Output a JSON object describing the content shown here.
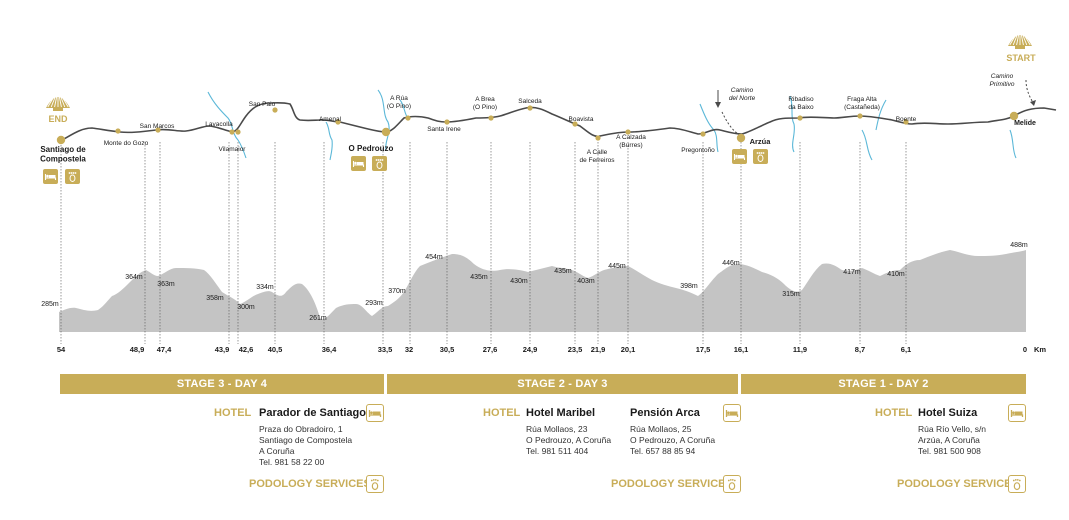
{
  "markers": {
    "end": "END",
    "start": "START"
  },
  "towns": [
    {
      "name": "Santiago de Compostela",
      "lines": [
        "Santiago de",
        "Compostela"
      ],
      "km": 54
    },
    {
      "name": "Monte do Gozo",
      "lines": [
        "Monte do Gozo"
      ]
    },
    {
      "name": "San Marcos",
      "lines": [
        "San Marcos"
      ]
    },
    {
      "name": "Lavacolla",
      "lines": [
        "Lavacolla"
      ]
    },
    {
      "name": "Vilamaior",
      "lines": [
        "Vilamaior"
      ]
    },
    {
      "name": "San Paio",
      "lines": [
        "San Paio"
      ]
    },
    {
      "name": "Amenal",
      "lines": [
        "Amenal"
      ]
    },
    {
      "name": "O Pedrouzo",
      "lines": [
        "O Pedrouzo"
      ]
    },
    {
      "name": "A Rúa (O Pino)",
      "lines": [
        "A Rúa",
        "(O Pino)"
      ]
    },
    {
      "name": "Santa Irene",
      "lines": [
        "Santa Irene"
      ]
    },
    {
      "name": "A Brea (O Pino)",
      "lines": [
        "A Brea",
        "(O Pino)"
      ]
    },
    {
      "name": "Salceda",
      "lines": [
        "Salceda"
      ]
    },
    {
      "name": "Boavista",
      "lines": [
        "Boavista"
      ]
    },
    {
      "name": "A Calle de Ferreiros",
      "lines": [
        "A Calle",
        "de Ferreiros"
      ]
    },
    {
      "name": "A Calzada (Burres)",
      "lines": [
        "A Calzada",
        "(Burres)"
      ]
    },
    {
      "name": "Pregontoño",
      "lines": [
        "Pregontoño"
      ]
    },
    {
      "name": "Arzúa",
      "lines": [
        "Arzúa"
      ]
    },
    {
      "name": "Ribadiso da Baixo",
      "lines": [
        "Ribadiso",
        "da Baixo"
      ]
    },
    {
      "name": "Fraga Alta (Castañeda)",
      "lines": [
        "Fraga Alta",
        "(Castañeda)"
      ]
    },
    {
      "name": "Boente",
      "lines": [
        "Boente"
      ]
    },
    {
      "name": "Melide",
      "lines": [
        "Melide"
      ]
    }
  ],
  "routes": [
    {
      "lines": [
        "Camino",
        "del Norte"
      ]
    },
    {
      "lines": [
        "Camino",
        "Primitivo"
      ]
    }
  ],
  "distances": [
    "54",
    "48,9",
    "47,4",
    "43,9",
    "42,6",
    "40,5",
    "36,4",
    "33,5",
    "32",
    "30,5",
    "27,6",
    "24,9",
    "23,5",
    "21,9",
    "20,1",
    "17,5",
    "16,1",
    "11,9",
    "8,7",
    "6,1",
    "0"
  ],
  "distance_unit": "Km",
  "elevations": [
    "285m",
    "364m",
    "363m",
    "358m",
    "300m",
    "334m",
    "261m",
    "293m",
    "370m",
    "454m",
    "435m",
    "430m",
    "435m",
    "403m",
    "445m",
    "398m",
    "446m",
    "315m",
    "417m",
    "410m",
    "488m"
  ],
  "stages": [
    "STAGE 3 - DAY 4",
    "STAGE 2 - DAY 3",
    "STAGE 1 - DAY 2"
  ],
  "services": {
    "hotel_label": "HOTEL",
    "podology_label": "PODOLOGY SERVICES",
    "hotels": [
      {
        "name": "Parador de Santiago",
        "address": [
          "Praza do Obradoiro, 1",
          "Santiago de Compostela",
          "A Coruña",
          "Tel. 981 58 22 00"
        ]
      },
      {
        "name": "Hotel Maribel",
        "address": [
          "Rúa Mollaos, 23",
          "O Pedrouzo, A Coruña",
          "Tel. 981 511 404"
        ]
      },
      {
        "name": "Pensión Arca",
        "address": [
          "Rúa Mollaos, 25",
          "O Pedrouzo, A Coruña",
          "Tel. 657 88 85 94"
        ]
      },
      {
        "name": "Hotel Suiza",
        "address": [
          "Rúa Río Vello, s/n",
          "Arzúa, A Coruña",
          "Tel. 981 500 908"
        ]
      }
    ]
  },
  "colors": {
    "gold": "#c8ad58",
    "profile": "#c4c4c4",
    "river": "#5cb8d8",
    "route": "#4a4a4a"
  },
  "icons": [
    "scallop-shell-icon",
    "bed-icon",
    "foot-icon"
  ]
}
